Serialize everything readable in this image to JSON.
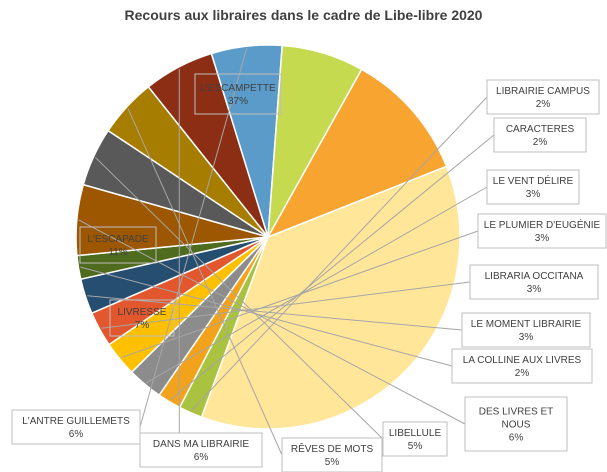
{
  "chart_data": {
    "type": "pie",
    "title": "Recours aux libraires dans le cadre de Libe-libre 2020",
    "slices": [
      {
        "name": "L'ESCAMPETTE",
        "value": 37,
        "label": "37%",
        "color": "#FFE699"
      },
      {
        "name": "LIBRAIRIE CAMPUS",
        "value": 2,
        "label": "2%",
        "color": "#A9C23F"
      },
      {
        "name": "CARACTERES",
        "value": 2,
        "label": "2%",
        "color": "#F2A31B"
      },
      {
        "name": "LE VENT DÉLIRE",
        "value": 3,
        "label": "3%",
        "color": "#8C8C8C"
      },
      {
        "name": "LE PLUMIER D'EUGÉNIE",
        "value": 3,
        "label": "3%",
        "color": "#FFC000"
      },
      {
        "name": "LIBRARIA OCCITANA",
        "value": 3,
        "label": "3%",
        "color": "#E2572D"
      },
      {
        "name": "LE MOMENT LIBRAIRIE",
        "value": 3,
        "label": "3%",
        "color": "#264E70"
      },
      {
        "name": "LA COLLINE AUX LIVRES",
        "value": 2,
        "label": "2%",
        "color": "#4F6B1E"
      },
      {
        "name": "DES LIVRES ET NOUS",
        "value": 6,
        "label": "6%",
        "color": "#9C5700"
      },
      {
        "name": "LIBELLULE",
        "value": 5,
        "label": "5%",
        "color": "#595959"
      },
      {
        "name": "RÊVES DE  MOTS",
        "value": 5,
        "label": "5%",
        "color": "#A77D00"
      },
      {
        "name": "DANS MA LIBRAIRIE",
        "value": 6,
        "label": "6%",
        "color": "#8B2E14"
      },
      {
        "name": "L'ANTRE GUILLEMETS",
        "value": 6,
        "label": "6%",
        "color": "#5B9BC9"
      },
      {
        "name": "LIVRESSE",
        "value": 7,
        "label": "7%",
        "color": "#C5DA4E"
      },
      {
        "name": "L'ESCAPADE",
        "value": 11,
        "label": "11%",
        "color": "#F7A431"
      }
    ]
  }
}
